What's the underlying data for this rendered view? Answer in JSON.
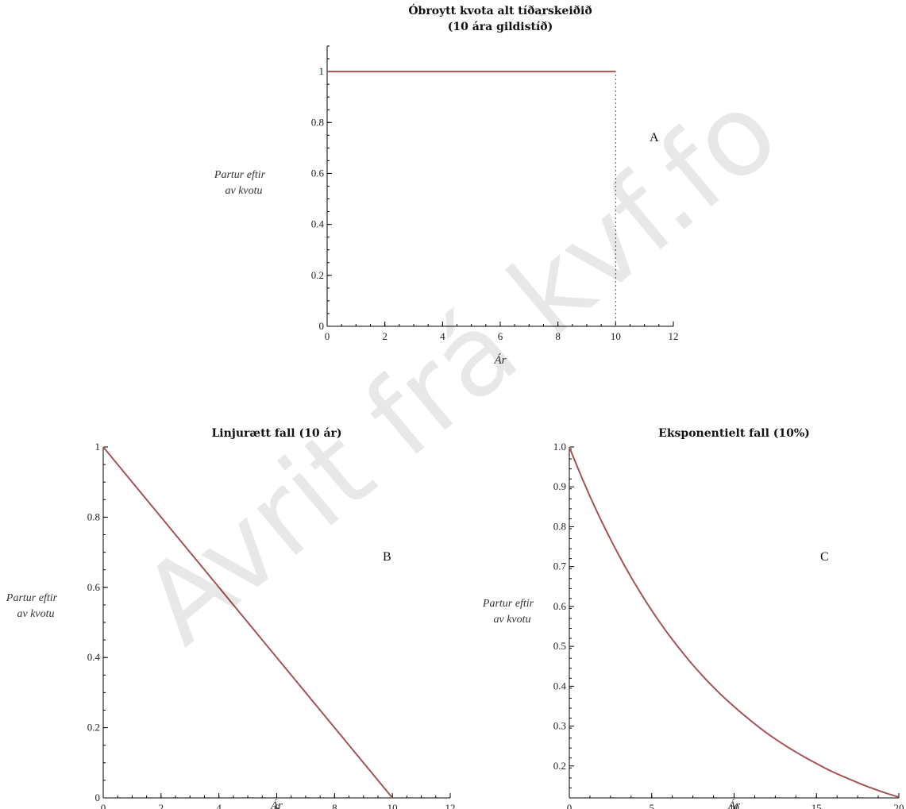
{
  "watermark": "Avrit frá kvf.fo",
  "chart_data": [
    {
      "type": "line",
      "panel_label": "A",
      "title_lines": [
        "Óbroytt kvota alt tíðarskeiðið",
        "(10 ára gildistíð)"
      ],
      "ylabel_lines": [
        "Partur eftir",
        "av kvotu"
      ],
      "xlabel": "Ár",
      "xlim": [
        0,
        12
      ],
      "ylim": [
        0,
        1.1
      ],
      "xticks": [
        0,
        2,
        4,
        6,
        8,
        10,
        12
      ],
      "yticks": [
        0,
        0.2,
        0.4,
        0.6,
        0.8,
        1
      ],
      "ytick_labels": [
        "0",
        "0.2",
        "0.4",
        "0.6",
        "0.8",
        "1"
      ],
      "series": [
        {
          "x": [
            0,
            10
          ],
          "y": [
            1,
            1
          ]
        }
      ],
      "dotted_line": {
        "x": [
          10,
          10
        ],
        "y": [
          0,
          1
        ]
      },
      "grid": false
    },
    {
      "type": "line",
      "panel_label": "B",
      "title_lines": [
        "Linjurætt fall (10 ár)"
      ],
      "ylabel_lines": [
        "Partur eftir",
        "av kvotu"
      ],
      "xlabel": "Ár",
      "xlim": [
        0,
        12
      ],
      "ylim": [
        0,
        1
      ],
      "xticks": [
        0,
        2,
        4,
        6,
        8,
        10,
        12
      ],
      "yticks": [
        0,
        0.2,
        0.4,
        0.6,
        0.8,
        1
      ],
      "ytick_labels": [
        "0",
        "0.2",
        "0.4",
        "0.6",
        "0.8",
        "1"
      ],
      "series": [
        {
          "x": [
            0,
            10
          ],
          "y": [
            1,
            0
          ]
        }
      ],
      "grid": false
    },
    {
      "type": "line",
      "panel_label": "C",
      "title_lines": [
        "Eksponentielt fall (10%)"
      ],
      "ylabel_lines": [
        "Partur eftir",
        "av kvotu"
      ],
      "xlabel": "Ár",
      "xlim": [
        0,
        20
      ],
      "ylim": [
        0.12,
        1.0
      ],
      "xticks": [
        0,
        5,
        10,
        15,
        20
      ],
      "yticks": [
        0.2,
        0.3,
        0.4,
        0.5,
        0.6,
        0.7,
        0.8,
        0.9,
        1.0
      ],
      "ytick_labels": [
        "0.2",
        "0.3",
        "0.4",
        "0.5",
        "0.6",
        "0.7",
        "0.8",
        "0.9",
        "1.0"
      ],
      "series": [
        {
          "x": [
            0,
            1,
            2,
            3,
            4,
            5,
            6,
            7,
            8,
            9,
            10,
            11,
            12,
            13,
            14,
            15,
            16,
            17,
            18,
            19,
            20
          ],
          "y": [
            1.0,
            0.9,
            0.81,
            0.729,
            0.656,
            0.59,
            0.531,
            0.478,
            0.43,
            0.387,
            0.349,
            0.314,
            0.282,
            0.254,
            0.229,
            0.206,
            0.185,
            0.167,
            0.15,
            0.135,
            0.122
          ]
        }
      ],
      "grid": false
    }
  ]
}
